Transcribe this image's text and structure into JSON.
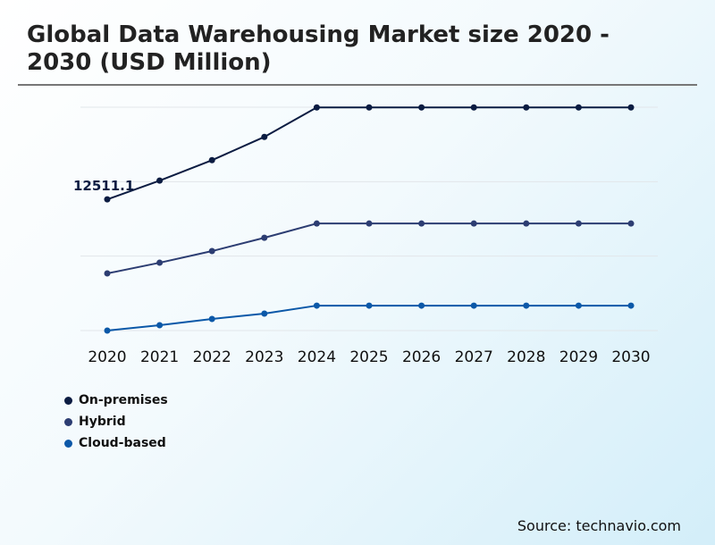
{
  "title": "Global Data Warehousing Market size 2020 - 2030 (USD Million)",
  "source": "Source: technavio.com",
  "chart_data": {
    "type": "line",
    "title": "Global Data Warehousing Market size 2020 - 2030 (USD Million)",
    "categories": [
      "2020",
      "2021",
      "2022",
      "2023",
      "2024",
      "2025",
      "2026",
      "2027",
      "2028",
      "2029",
      "2030"
    ],
    "ylim": [
      0,
      21300
    ],
    "grid": true,
    "gridlines": [
      0,
      7100,
      14200,
      21300
    ],
    "legend_position": "bottom-left",
    "series": [
      {
        "name": "On-premises",
        "color": "#0b1c42",
        "values": [
          12511.1,
          14300,
          16250,
          18470,
          21280,
          21280,
          21280,
          21280,
          21280,
          21280,
          21280
        ]
      },
      {
        "name": "Hybrid",
        "color": "#2c3d72",
        "values": [
          5450,
          6470,
          7580,
          8850,
          10210,
          10210,
          10210,
          10210,
          10210,
          10210,
          10210
        ]
      },
      {
        "name": "Cloud-based",
        "color": "#0b58a8",
        "values": [
          0,
          510,
          1110,
          1620,
          2380,
          2380,
          2380,
          2380,
          2380,
          2380,
          2380
        ]
      }
    ],
    "annotations": [
      {
        "series": "On-premises",
        "category": "2020",
        "text": "12511.1"
      }
    ]
  }
}
